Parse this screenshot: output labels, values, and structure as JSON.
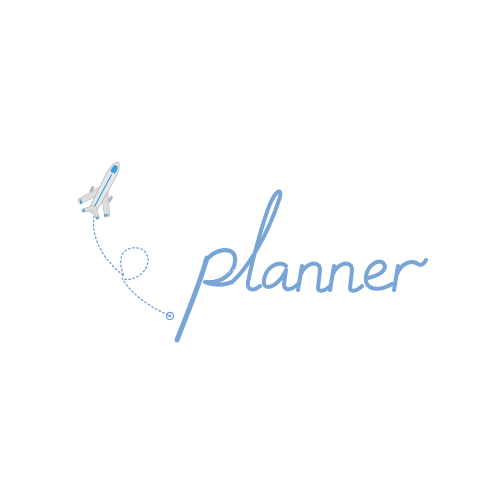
{
  "logo": {
    "wordmark": "planner",
    "colors": {
      "wordmark": "#78a5d6",
      "path": "#6f9fd3",
      "plane_body": "#dcdcdc",
      "plane_shade": "#b8b8b8",
      "plane_accent": "#3a9fd9",
      "background": "#ffffff"
    },
    "icons": [
      "airplane-icon",
      "heart-flight-path",
      "location-pin-icon"
    ]
  }
}
